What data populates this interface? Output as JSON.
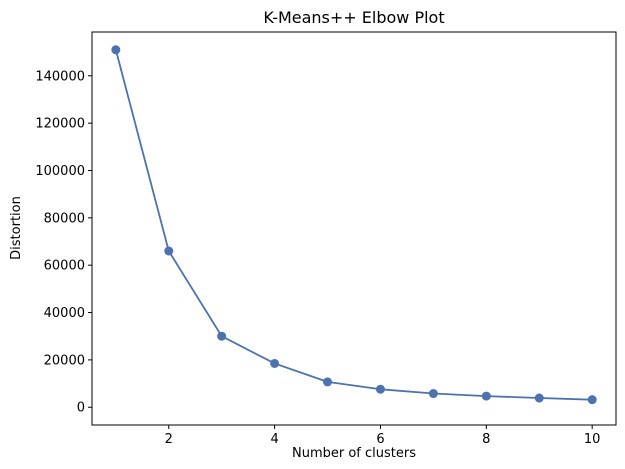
{
  "chart_data": {
    "type": "line",
    "title": "K-Means++ Elbow Plot",
    "xlabel": "Number of clusters",
    "ylabel": "Distortion",
    "x": [
      1,
      2,
      3,
      4,
      5,
      6,
      7,
      8,
      9,
      10
    ],
    "series": [
      {
        "values": [
          151000,
          66000,
          30000,
          18500,
          10700,
          7600,
          5800,
          4700,
          3900,
          3200
        ]
      }
    ],
    "xticks": [
      2,
      4,
      6,
      8,
      10
    ],
    "yticks": [
      0,
      20000,
      40000,
      60000,
      80000,
      100000,
      120000,
      140000
    ],
    "xlim": [
      0.55,
      10.45
    ],
    "ylim": [
      -7500,
      158500
    ],
    "grid": false,
    "legend": "none",
    "marker": "circle",
    "line_color": "#4c72b0"
  }
}
